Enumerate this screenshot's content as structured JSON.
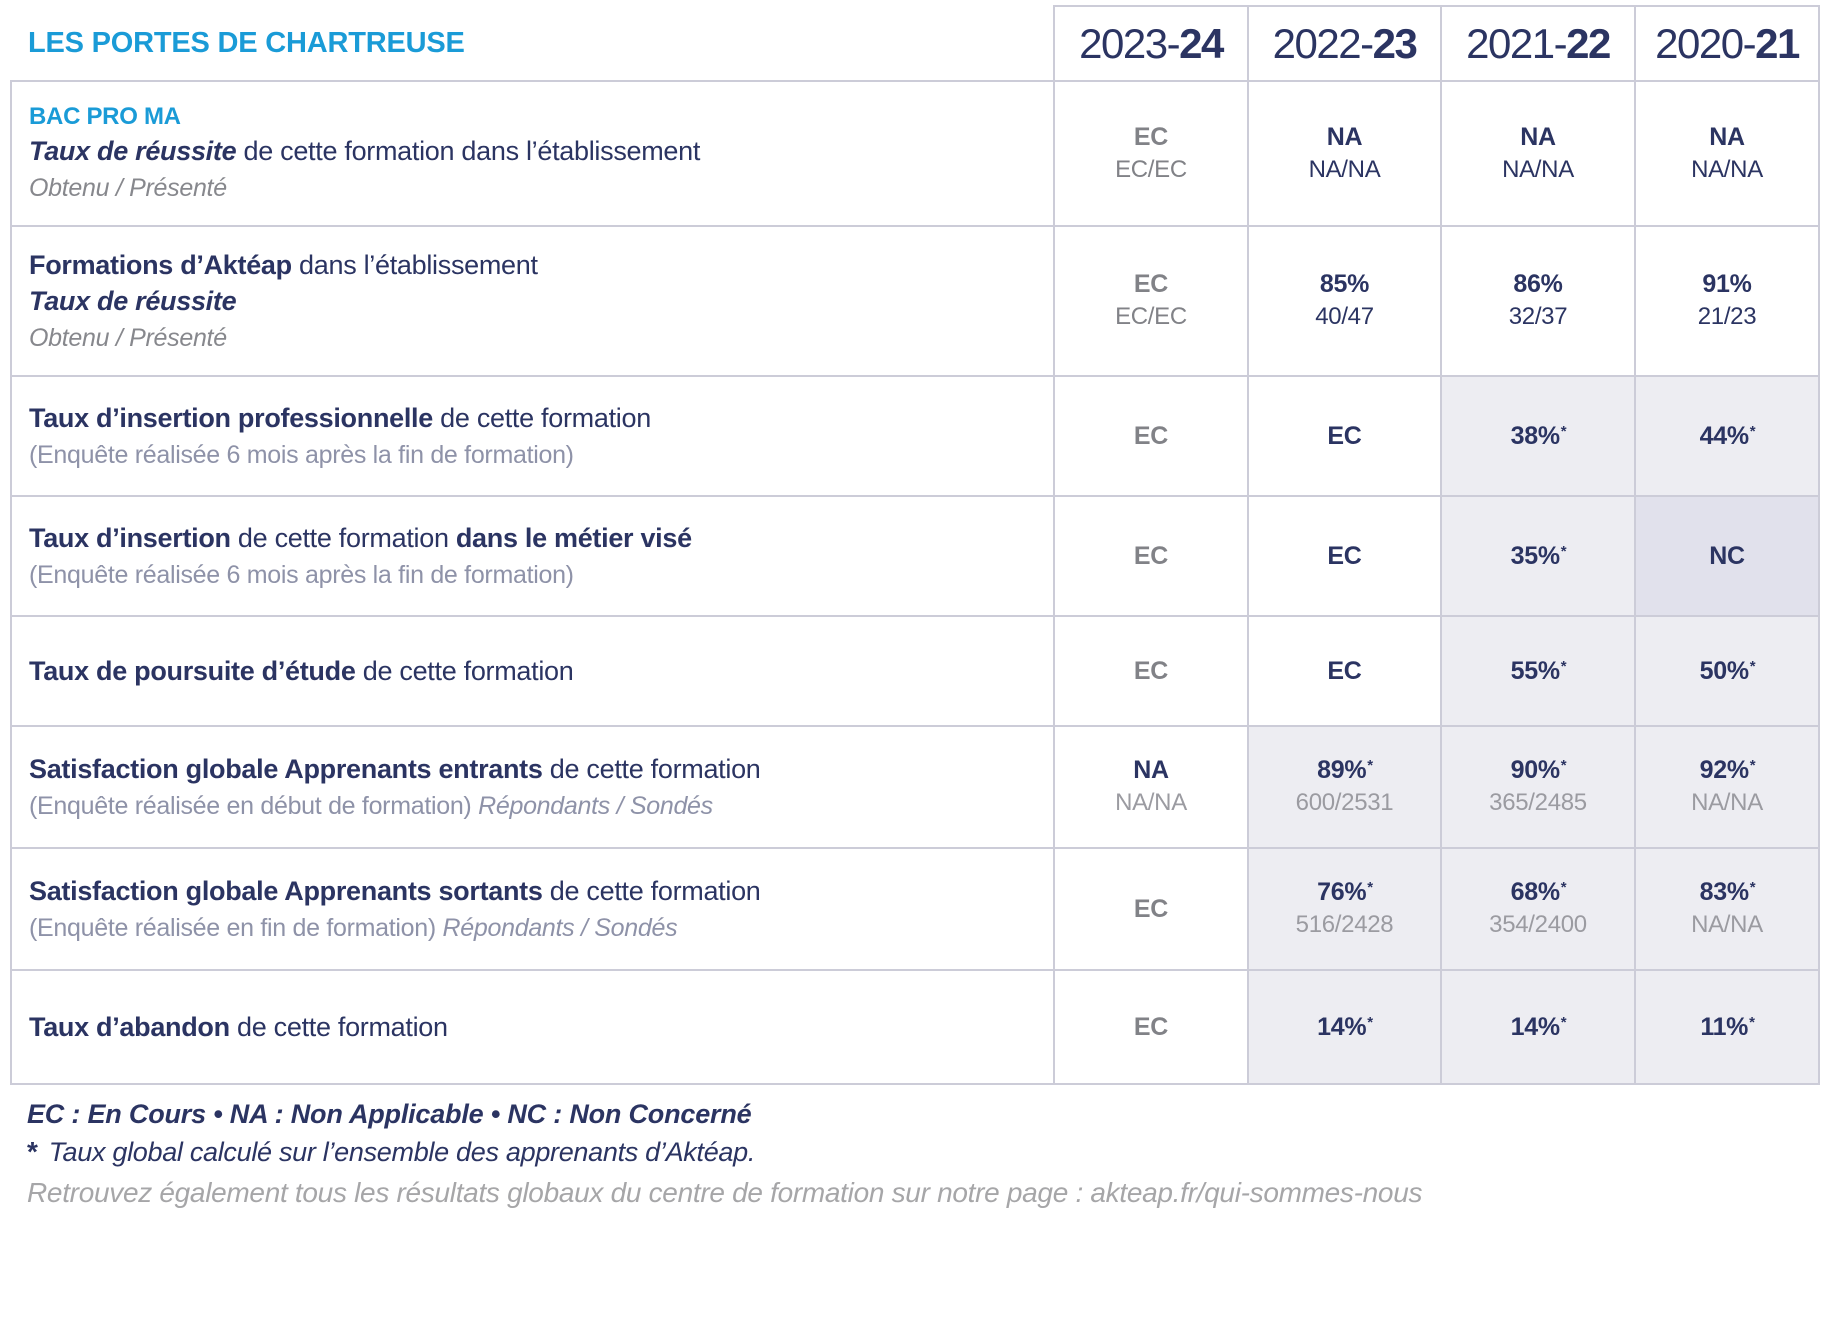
{
  "title": "LES PORTES DE CHARTREUSE",
  "columns": [
    {
      "prefix": "2023-",
      "bold": "24"
    },
    {
      "prefix": "2022-",
      "bold": "23"
    },
    {
      "prefix": "2021-",
      "bold": "22"
    },
    {
      "prefix": "2020-",
      "bold": "21"
    }
  ],
  "rows": [
    {
      "tag": "BAC PRO MA",
      "lines": [
        [
          {
            "t": "Taux de réussite",
            "s": "bi"
          },
          {
            "t": " de cette formation dans l’établissement",
            "s": "r"
          }
        ],
        [
          {
            "t": "Obtenu / Présenté",
            "s": "gi"
          }
        ]
      ],
      "cells": [
        {
          "v": "EC",
          "c": "gray",
          "sub": "EC/EC",
          "sc": "gray",
          "bg": "w"
        },
        {
          "v": "NA",
          "c": "navy",
          "sub": "NA/NA",
          "sc": "navy",
          "bg": "w"
        },
        {
          "v": "NA",
          "c": "navy",
          "sub": "NA/NA",
          "sc": "navy",
          "bg": "w"
        },
        {
          "v": "NA",
          "c": "navy",
          "sub": "NA/NA",
          "sc": "navy",
          "bg": "w"
        }
      ]
    },
    {
      "lines": [
        [
          {
            "t": "Formations d’Aktéap",
            "s": "b"
          },
          {
            "t": " dans l’établissement",
            "s": "r"
          }
        ],
        [
          {
            "t": "Taux de réussite",
            "s": "bi"
          }
        ],
        [
          {
            "t": "Obtenu / Présenté",
            "s": "gi"
          }
        ]
      ],
      "cells": [
        {
          "v": "EC",
          "c": "gray",
          "sub": "EC/EC",
          "sc": "gray",
          "bg": "w"
        },
        {
          "v": "85%",
          "c": "navy",
          "sub": "40/47",
          "sc": "navy",
          "bg": "w"
        },
        {
          "v": "86%",
          "c": "navy",
          "sub": "32/37",
          "sc": "navy",
          "bg": "w"
        },
        {
          "v": "91%",
          "c": "navy",
          "sub": "21/23",
          "sc": "navy",
          "bg": "w"
        }
      ]
    },
    {
      "lines": [
        [
          {
            "t": "Taux d’insertion professionnelle",
            "s": "b"
          },
          {
            "t": " de cette formation",
            "s": "r"
          }
        ],
        [
          {
            "t": "(Enquête réalisée 6 mois après la fin de formation)",
            "s": "l"
          }
        ]
      ],
      "cells": [
        {
          "v": "EC",
          "c": "gray",
          "bg": "w"
        },
        {
          "v": "EC",
          "c": "navy",
          "bg": "w"
        },
        {
          "v": "38%",
          "star": "*",
          "c": "navy",
          "bg": "s"
        },
        {
          "v": "44%",
          "star": "*",
          "c": "navy",
          "bg": "s"
        }
      ]
    },
    {
      "lines": [
        [
          {
            "t": "Taux d’insertion",
            "s": "b"
          },
          {
            "t": " de cette formation ",
            "s": "r"
          },
          {
            "t": "dans le métier visé",
            "s": "b"
          }
        ],
        [
          {
            "t": "(Enquête réalisée 6 mois après la fin de formation)",
            "s": "l"
          }
        ]
      ],
      "cells": [
        {
          "v": "EC",
          "c": "gray",
          "bg": "w"
        },
        {
          "v": "EC",
          "c": "navy",
          "bg": "w"
        },
        {
          "v": "35%",
          "star": "*",
          "c": "navy",
          "bg": "s"
        },
        {
          "v": "NC",
          "c": "navy",
          "bg": "s2"
        }
      ]
    },
    {
      "lines": [
        [
          {
            "t": "Taux de poursuite d’étude",
            "s": "b"
          },
          {
            "t": " de cette formation",
            "s": "r"
          }
        ]
      ],
      "cells": [
        {
          "v": "EC",
          "c": "gray",
          "bg": "w"
        },
        {
          "v": "EC",
          "c": "navy",
          "bg": "w"
        },
        {
          "v": "55%",
          "star": "*",
          "c": "navy",
          "bg": "s"
        },
        {
          "v": "50%",
          "star": "*",
          "c": "navy",
          "bg": "s"
        }
      ]
    },
    {
      "lines": [
        [
          {
            "t": "Satisfaction globale Apprenants entrants",
            "s": "b"
          },
          {
            "t": " de cette formation",
            "s": "r"
          }
        ],
        [
          {
            "t": "(Enquête réalisée en début de formation) ",
            "s": "l"
          },
          {
            "t": "Répondants / Sondés",
            "s": "li"
          }
        ]
      ],
      "cells": [
        {
          "v": "NA",
          "c": "navy",
          "sub": "NA/NA",
          "sc": "gray2",
          "bg": "w"
        },
        {
          "v": "89%",
          "star": "*",
          "c": "navy",
          "sub": "600/2531",
          "sc": "gray2",
          "bg": "s"
        },
        {
          "v": "90%",
          "star": "*",
          "c": "navy",
          "sub": "365/2485",
          "sc": "gray2",
          "bg": "s"
        },
        {
          "v": "92%",
          "star": "*",
          "c": "navy",
          "sub": "NA/NA",
          "sc": "gray2",
          "bg": "s"
        }
      ]
    },
    {
      "lines": [
        [
          {
            "t": "Satisfaction globale Apprenants sortants",
            "s": "b"
          },
          {
            "t": " de cette formation",
            "s": "r"
          }
        ],
        [
          {
            "t": "(Enquête réalisée en fin de formation) ",
            "s": "l"
          },
          {
            "t": "Répondants / Sondés",
            "s": "li"
          }
        ]
      ],
      "cells": [
        {
          "v": "EC",
          "c": "gray",
          "bg": "w"
        },
        {
          "v": "76%",
          "star": "*",
          "c": "navy",
          "sub": "516/2428",
          "sc": "gray2",
          "bg": "s"
        },
        {
          "v": "68%",
          "star": "*",
          "c": "navy",
          "sub": "354/2400",
          "sc": "gray2",
          "bg": "s"
        },
        {
          "v": "83%",
          "star": "*",
          "c": "navy",
          "sub": "NA/NA",
          "sc": "gray2",
          "bg": "s"
        }
      ]
    },
    {
      "lines": [
        [
          {
            "t": "Taux d’abandon",
            "s": "b"
          },
          {
            "t": " de cette formation",
            "s": "r"
          }
        ]
      ],
      "cells": [
        {
          "v": "EC",
          "c": "gray",
          "bg": "w"
        },
        {
          "v": "14%",
          "star": "*",
          "c": "navy",
          "bg": "s"
        },
        {
          "v": "14%",
          "star": "*",
          "c": "navy",
          "bg": "s"
        },
        {
          "v": "11%",
          "star": "*",
          "c": "navy",
          "bg": "s"
        }
      ]
    }
  ],
  "footer": {
    "legend": "EC : En Cours  •  NA : Non Applicable  •  NC : Non Concerné",
    "star": "*",
    "star_note": " Taux global calculé sur l’ensemble des apprenants d’Aktéap.",
    "link_note": "Retrouvez également tous les résultats globaux du centre de formation sur notre page : akteap.fr/qui-sommes-nous"
  },
  "colors": {
    "accent_blue": "#1a9bd7",
    "navy": "#2b3462",
    "value_gray": "#818287",
    "sub_gray": "#9b9ba1",
    "note_lavender": "#8e92a8",
    "border": "#ccccd8",
    "cell_shade": "#ededf2",
    "cell_shade_dark": "#e1e1ec",
    "footer_gray": "#a6a6a8"
  }
}
